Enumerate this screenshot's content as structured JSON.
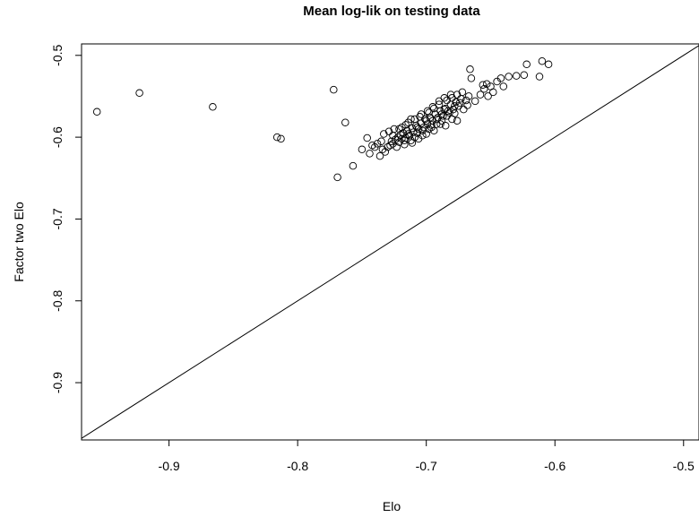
{
  "chart_data": {
    "type": "scatter",
    "title": "Mean log-lik on testing data",
    "xlabel": "Elo",
    "ylabel": "Factor two Elo",
    "xlim": [
      -0.968,
      -0.488
    ],
    "ylim": [
      -0.97,
      -0.486
    ],
    "x_ticks": [
      -0.9,
      -0.8,
      -0.7,
      -0.6,
      -0.5
    ],
    "x_tick_labels": [
      "-0.9",
      "-0.8",
      "-0.7",
      "-0.6",
      "-0.5"
    ],
    "y_ticks": [
      -0.9,
      -0.8,
      -0.7,
      -0.6,
      -0.5
    ],
    "y_tick_labels": [
      "-0.9",
      "-0.8",
      "-0.7",
      "-0.6",
      "-0.5"
    ],
    "reference_line": {
      "slope": 1,
      "intercept": 0
    },
    "grid": false,
    "legend": "none",
    "marker": "open-circle",
    "points": [
      [
        -0.956,
        -0.569
      ],
      [
        -0.923,
        -0.546
      ],
      [
        -0.866,
        -0.563
      ],
      [
        -0.816,
        -0.6
      ],
      [
        -0.813,
        -0.602
      ],
      [
        -0.772,
        -0.542
      ],
      [
        -0.763,
        -0.582
      ],
      [
        -0.769,
        -0.649
      ],
      [
        -0.757,
        -0.635
      ],
      [
        -0.75,
        -0.615
      ],
      [
        -0.746,
        -0.601
      ],
      [
        -0.744,
        -0.62
      ],
      [
        -0.74,
        -0.612
      ],
      [
        -0.736,
        -0.623
      ],
      [
        -0.732,
        -0.618
      ],
      [
        -0.735,
        -0.605
      ],
      [
        -0.728,
        -0.61
      ],
      [
        -0.726,
        -0.598
      ],
      [
        -0.723,
        -0.612
      ],
      [
        -0.721,
        -0.59
      ],
      [
        -0.719,
        -0.602
      ],
      [
        -0.716,
        -0.585
      ],
      [
        -0.714,
        -0.596
      ],
      [
        -0.712,
        -0.578
      ],
      [
        -0.709,
        -0.6
      ],
      [
        -0.707,
        -0.588
      ],
      [
        -0.705,
        -0.575
      ],
      [
        -0.703,
        -0.592
      ],
      [
        -0.7,
        -0.58
      ],
      [
        -0.698,
        -0.57
      ],
      [
        -0.696,
        -0.585
      ],
      [
        -0.694,
        -0.565
      ],
      [
        -0.692,
        -0.578
      ],
      [
        -0.69,
        -0.56
      ],
      [
        -0.688,
        -0.572
      ],
      [
        -0.686,
        -0.566
      ],
      [
        -0.684,
        -0.555
      ],
      [
        -0.682,
        -0.57
      ],
      [
        -0.68,
        -0.552
      ],
      [
        -0.678,
        -0.562
      ],
      [
        -0.676,
        -0.548
      ],
      [
        -0.674,
        -0.558
      ],
      [
        -0.672,
        -0.545
      ],
      [
        -0.669,
        -0.555
      ],
      [
        -0.667,
        -0.55
      ],
      [
        -0.666,
        -0.517
      ],
      [
        -0.665,
        -0.528
      ],
      [
        -0.656,
        -0.536
      ],
      [
        -0.653,
        -0.535
      ],
      [
        -0.652,
        -0.55
      ],
      [
        -0.648,
        -0.545
      ],
      [
        -0.645,
        -0.532
      ],
      [
        -0.642,
        -0.528
      ],
      [
        -0.64,
        -0.538
      ],
      [
        -0.636,
        -0.526
      ],
      [
        -0.63,
        -0.525
      ],
      [
        -0.624,
        -0.524
      ],
      [
        -0.622,
        -0.511
      ],
      [
        -0.612,
        -0.526
      ],
      [
        -0.61,
        -0.507
      ],
      [
        -0.605,
        -0.511
      ],
      [
        -0.73,
        -0.612
      ],
      [
        -0.727,
        -0.605
      ],
      [
        -0.724,
        -0.603
      ],
      [
        -0.722,
        -0.6
      ],
      [
        -0.72,
        -0.597
      ],
      [
        -0.718,
        -0.595
      ],
      [
        -0.717,
        -0.604
      ],
      [
        -0.715,
        -0.592
      ],
      [
        -0.713,
        -0.598
      ],
      [
        -0.711,
        -0.589
      ],
      [
        -0.71,
        -0.594
      ],
      [
        -0.708,
        -0.586
      ],
      [
        -0.706,
        -0.59
      ],
      [
        -0.704,
        -0.583
      ],
      [
        -0.702,
        -0.588
      ],
      [
        -0.701,
        -0.578
      ],
      [
        -0.699,
        -0.584
      ],
      [
        -0.697,
        -0.576
      ],
      [
        -0.695,
        -0.58
      ],
      [
        -0.693,
        -0.572
      ],
      [
        -0.691,
        -0.576
      ],
      [
        -0.689,
        -0.568
      ],
      [
        -0.687,
        -0.574
      ],
      [
        -0.685,
        -0.565
      ],
      [
        -0.683,
        -0.568
      ],
      [
        -0.681,
        -0.56
      ],
      [
        -0.679,
        -0.566
      ],
      [
        -0.677,
        -0.557
      ],
      [
        -0.675,
        -0.562
      ],
      [
        -0.673,
        -0.553
      ],
      [
        -0.726,
        -0.608
      ],
      [
        -0.721,
        -0.606
      ],
      [
        -0.716,
        -0.601
      ],
      [
        -0.712,
        -0.604
      ],
      [
        -0.707,
        -0.595
      ],
      [
        -0.703,
        -0.598
      ],
      [
        -0.698,
        -0.59
      ],
      [
        -0.694,
        -0.592
      ],
      [
        -0.689,
        -0.584
      ],
      [
        -0.685,
        -0.586
      ],
      [
        -0.68,
        -0.578
      ],
      [
        -0.676,
        -0.58
      ],
      [
        -0.719,
        -0.588
      ],
      [
        -0.714,
        -0.582
      ],
      [
        -0.709,
        -0.578
      ],
      [
        -0.704,
        -0.572
      ],
      [
        -0.699,
        -0.568
      ],
      [
        -0.695,
        -0.563
      ],
      [
        -0.69,
        -0.556
      ],
      [
        -0.686,
        -0.552
      ],
      [
        -0.681,
        -0.548
      ],
      [
        -0.733,
        -0.596
      ],
      [
        -0.729,
        -0.593
      ],
      [
        -0.725,
        -0.59
      ],
      [
        -0.738,
        -0.608
      ],
      [
        -0.742,
        -0.61
      ],
      [
        -0.734,
        -0.615
      ],
      [
        -0.717,
        -0.609
      ],
      [
        -0.711,
        -0.607
      ],
      [
        -0.706,
        -0.602
      ],
      [
        -0.7,
        -0.596
      ],
      [
        -0.696,
        -0.588
      ],
      [
        -0.692,
        -0.584
      ],
      [
        -0.688,
        -0.58
      ],
      [
        -0.684,
        -0.574
      ],
      [
        -0.678,
        -0.571
      ],
      [
        -0.671,
        -0.566
      ],
      [
        -0.668,
        -0.561
      ],
      [
        -0.662,
        -0.556
      ],
      [
        -0.658,
        -0.548
      ],
      [
        -0.655,
        -0.541
      ],
      [
        -0.65,
        -0.538
      ]
    ]
  }
}
